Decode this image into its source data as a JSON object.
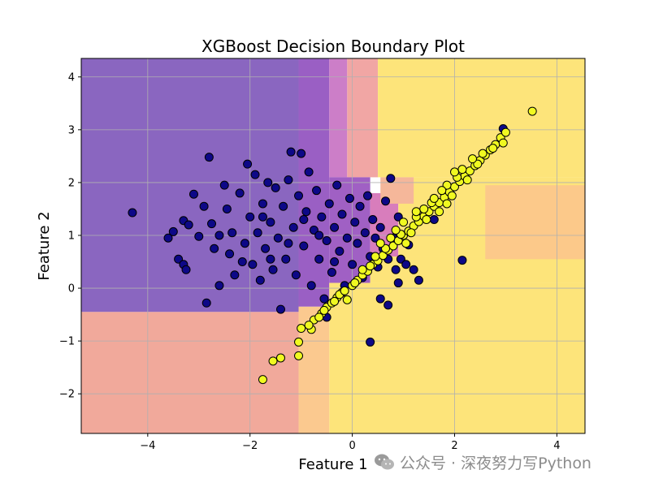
{
  "chart_data": {
    "type": "scatter",
    "title": "XGBoost Decision Boundary Plot",
    "xlabel": "Feature 1",
    "ylabel": "Feature 2",
    "xlim": [
      -5.3,
      4.55
    ],
    "ylim": [
      -2.75,
      4.35
    ],
    "xticks": [
      -4,
      -2,
      0,
      2,
      4
    ],
    "yticks": [
      -2,
      -1,
      0,
      1,
      2,
      3,
      4
    ],
    "grid": true,
    "background_regions": [
      {
        "x": [
          -5.3,
          -1.05
        ],
        "y": [
          -0.45,
          4.35
        ],
        "color": "#8a66c0"
      },
      {
        "x": [
          -1.05,
          -0.45
        ],
        "y": [
          -0.35,
          4.35
        ],
        "color": "#9a5fc4"
      },
      {
        "x": [
          -0.45,
          -0.1
        ],
        "y": [
          2.1,
          4.35
        ],
        "color": "#cc7ec8"
      },
      {
        "x": [
          -0.1,
          0.5
        ],
        "y": [
          2.1,
          4.35
        ],
        "color": "#f1a6a4"
      },
      {
        "x": [
          -0.45,
          0.35
        ],
        "y": [
          0.1,
          2.1
        ],
        "color": "#a060c4"
      },
      {
        "x": [
          0.35,
          0.9
        ],
        "y": [
          0.6,
          1.8
        ],
        "color": "#d87dbc"
      },
      {
        "x": [
          -5.3,
          -1.05
        ],
        "y": [
          -2.75,
          -0.45
        ],
        "color": "#f1a99b"
      },
      {
        "x": [
          -1.05,
          -0.45
        ],
        "y": [
          -2.75,
          -0.35
        ],
        "color": "#fbc98f"
      },
      {
        "x": [
          -0.45,
          4.55
        ],
        "y": [
          -2.75,
          0.1
        ],
        "color": "#fde47a"
      },
      {
        "x": [
          0.35,
          4.55
        ],
        "y": [
          0.1,
          0.6
        ],
        "color": "#fde47a"
      },
      {
        "x": [
          0.5,
          4.55
        ],
        "y": [
          2.1,
          4.35
        ],
        "color": "#fde47a"
      },
      {
        "x": [
          0.9,
          4.55
        ],
        "y": [
          0.6,
          2.1
        ],
        "color": "#fde47a"
      },
      {
        "x": [
          2.6,
          4.55
        ],
        "y": [
          0.55,
          1.95
        ],
        "color": "#fcc98a"
      },
      {
        "x": [
          0.55,
          1.2
        ],
        "y": [
          1.6,
          2.1
        ],
        "color": "#f5b79a"
      }
    ],
    "series": [
      {
        "color": "#0d0887",
        "points": [
          [
            -4.3,
            1.43
          ],
          [
            -3.6,
            0.95
          ],
          [
            -3.5,
            1.07
          ],
          [
            -3.4,
            0.55
          ],
          [
            -3.3,
            0.45
          ],
          [
            -3.25,
            0.35
          ],
          [
            -3.3,
            1.28
          ],
          [
            -3.2,
            1.2
          ],
          [
            -3.1,
            1.78
          ],
          [
            -3.0,
            0.98
          ],
          [
            -2.9,
            1.55
          ],
          [
            -2.8,
            2.48
          ],
          [
            -2.85,
            -0.28
          ],
          [
            -2.75,
            1.22
          ],
          [
            -2.7,
            0.75
          ],
          [
            -2.6,
            0.05
          ],
          [
            -2.5,
            1.95
          ],
          [
            -2.45,
            1.5
          ],
          [
            -2.4,
            0.65
          ],
          [
            -2.35,
            1.05
          ],
          [
            -2.3,
            0.25
          ],
          [
            -2.2,
            1.8
          ],
          [
            -2.1,
            0.85
          ],
          [
            -2.05,
            2.35
          ],
          [
            -2.0,
            1.35
          ],
          [
            -1.95,
            0.45
          ],
          [
            -1.9,
            2.15
          ],
          [
            -1.85,
            1.05
          ],
          [
            -1.8,
            0.15
          ],
          [
            -1.75,
            1.6
          ],
          [
            -1.7,
            0.75
          ],
          [
            -1.65,
            2.0
          ],
          [
            -1.6,
            1.25
          ],
          [
            -1.55,
            0.35
          ],
          [
            -1.5,
            1.9
          ],
          [
            -1.45,
            0.95
          ],
          [
            -1.4,
            -0.4
          ],
          [
            -1.35,
            1.55
          ],
          [
            -1.3,
            0.55
          ],
          [
            -1.25,
            2.05
          ],
          [
            -1.2,
            2.58
          ],
          [
            -1.15,
            1.15
          ],
          [
            -1.1,
            0.25
          ],
          [
            -1.05,
            1.75
          ],
          [
            -1.0,
            2.55
          ],
          [
            -0.95,
            0.8
          ],
          [
            -0.9,
            1.45
          ],
          [
            -0.85,
            2.2
          ],
          [
            -0.8,
            0.05
          ],
          [
            -0.75,
            1.1
          ],
          [
            -0.7,
            1.85
          ],
          [
            -0.65,
            0.55
          ],
          [
            -0.6,
            1.35
          ],
          [
            -0.55,
            -0.2
          ],
          [
            -0.5,
            0.9
          ],
          [
            -0.45,
            1.6
          ],
          [
            -0.4,
            0.3
          ],
          [
            -0.35,
            1.15
          ],
          [
            -0.3,
            1.95
          ],
          [
            -0.25,
            0.7
          ],
          [
            -0.2,
            1.4
          ],
          [
            -0.15,
            0.05
          ],
          [
            -0.1,
            0.95
          ],
          [
            -0.05,
            1.7
          ],
          [
            0.0,
            0.45
          ],
          [
            0.05,
            1.25
          ],
          [
            0.1,
            0.85
          ],
          [
            0.15,
            1.55
          ],
          [
            0.2,
            0.2
          ],
          [
            0.25,
            1.05
          ],
          [
            0.3,
            1.75
          ],
          [
            0.35,
            0.6
          ],
          [
            0.4,
            1.3
          ],
          [
            0.45,
            0.95
          ],
          [
            0.5,
            0.4
          ],
          [
            0.55,
            1.15
          ],
          [
            0.6,
            0.75
          ],
          [
            0.65,
            1.65
          ],
          [
            0.7,
            0.55
          ],
          [
            0.75,
            2.08
          ],
          [
            0.8,
            0.95
          ],
          [
            0.85,
            0.35
          ],
          [
            0.9,
            1.35
          ],
          [
            0.95,
            0.55
          ],
          [
            1.05,
            0.45
          ],
          [
            1.1,
            0.82
          ],
          [
            1.2,
            0.35
          ],
          [
            1.3,
            0.15
          ],
          [
            0.35,
            -1.02
          ],
          [
            0.55,
            -0.2
          ],
          [
            0.7,
            -0.32
          ],
          [
            0.9,
            0.1
          ],
          [
            2.15,
            0.53
          ],
          [
            1.6,
            1.3
          ],
          [
            2.95,
            3.02
          ],
          [
            -0.5,
            -0.55
          ],
          [
            -2.15,
            0.5
          ],
          [
            -1.75,
            1.35
          ],
          [
            -1.25,
            0.85
          ],
          [
            -0.95,
            1.3
          ],
          [
            -0.65,
            1.0
          ],
          [
            -0.35,
            0.5
          ],
          [
            -2.6,
            1.0
          ],
          [
            -1.6,
            0.55
          ]
        ]
      },
      {
        "color": "#f0f921",
        "points": [
          [
            -1.75,
            -1.73
          ],
          [
            -1.55,
            -1.38
          ],
          [
            -1.4,
            -1.32
          ],
          [
            -1.05,
            -1.28
          ],
          [
            -1.05,
            -1.02
          ],
          [
            -1.0,
            -0.76
          ],
          [
            -0.8,
            -0.78
          ],
          [
            -0.75,
            -0.6
          ],
          [
            -0.6,
            -0.48
          ],
          [
            -0.5,
            -0.36
          ],
          [
            -0.4,
            -0.28
          ],
          [
            -0.3,
            -0.18
          ],
          [
            -0.2,
            -0.08
          ],
          [
            -0.1,
            -0.22
          ],
          [
            0.0,
            0.05
          ],
          [
            0.1,
            0.15
          ],
          [
            0.2,
            0.25
          ],
          [
            0.3,
            0.32
          ],
          [
            0.4,
            0.45
          ],
          [
            0.5,
            0.52
          ],
          [
            0.6,
            0.62
          ],
          [
            0.7,
            0.72
          ],
          [
            0.8,
            0.8
          ],
          [
            0.9,
            0.9
          ],
          [
            1.0,
            1.0
          ],
          [
            1.1,
            1.08
          ],
          [
            1.2,
            1.18
          ],
          [
            1.3,
            1.26
          ],
          [
            1.4,
            1.36
          ],
          [
            1.5,
            1.45
          ],
          [
            1.6,
            1.55
          ],
          [
            1.7,
            1.62
          ],
          [
            1.8,
            1.72
          ],
          [
            1.9,
            1.82
          ],
          [
            2.0,
            1.92
          ],
          [
            2.1,
            2.02
          ],
          [
            2.2,
            2.12
          ],
          [
            2.3,
            2.22
          ],
          [
            2.4,
            2.32
          ],
          [
            2.5,
            2.42
          ],
          [
            2.6,
            2.52
          ],
          [
            2.7,
            2.62
          ],
          [
            2.8,
            2.72
          ],
          [
            2.9,
            2.85
          ],
          [
            3.0,
            2.95
          ],
          [
            3.52,
            3.35
          ],
          [
            2.95,
            2.75
          ],
          [
            2.15,
            2.25
          ],
          [
            1.85,
            1.95
          ],
          [
            1.55,
            1.62
          ],
          [
            1.25,
            1.35
          ],
          [
            0.95,
            1.02
          ],
          [
            0.65,
            0.75
          ],
          [
            0.35,
            0.42
          ],
          [
            0.05,
            0.1
          ],
          [
            -0.25,
            -0.12
          ],
          [
            -0.55,
            -0.42
          ],
          [
            -0.65,
            -0.55
          ],
          [
            1.0,
            1.25
          ],
          [
            1.4,
            1.5
          ],
          [
            1.75,
            1.85
          ],
          [
            2.05,
            2.1
          ],
          [
            0.55,
            0.85
          ],
          [
            0.85,
            1.1
          ],
          [
            1.15,
            1.05
          ],
          [
            1.45,
            1.3
          ],
          [
            1.85,
            1.6
          ],
          [
            2.25,
            2.05
          ],
          [
            0.2,
            0.35
          ],
          [
            -0.35,
            -0.25
          ],
          [
            2.45,
            2.35
          ],
          [
            2.75,
            2.65
          ],
          [
            1.6,
            1.7
          ],
          [
            1.95,
            1.75
          ],
          [
            0.75,
            0.95
          ],
          [
            1.25,
            1.45
          ],
          [
            -0.85,
            -0.7
          ],
          [
            2.0,
            2.2
          ],
          [
            1.7,
            1.45
          ],
          [
            1.05,
            0.85
          ],
          [
            2.55,
            2.55
          ],
          [
            2.35,
            2.45
          ],
          [
            0.45,
            0.6
          ],
          [
            -0.15,
            -0.05
          ]
        ]
      }
    ]
  },
  "watermark": {
    "text": "公众号 · 深夜努力写Python",
    "icon": "wechat-icon"
  }
}
